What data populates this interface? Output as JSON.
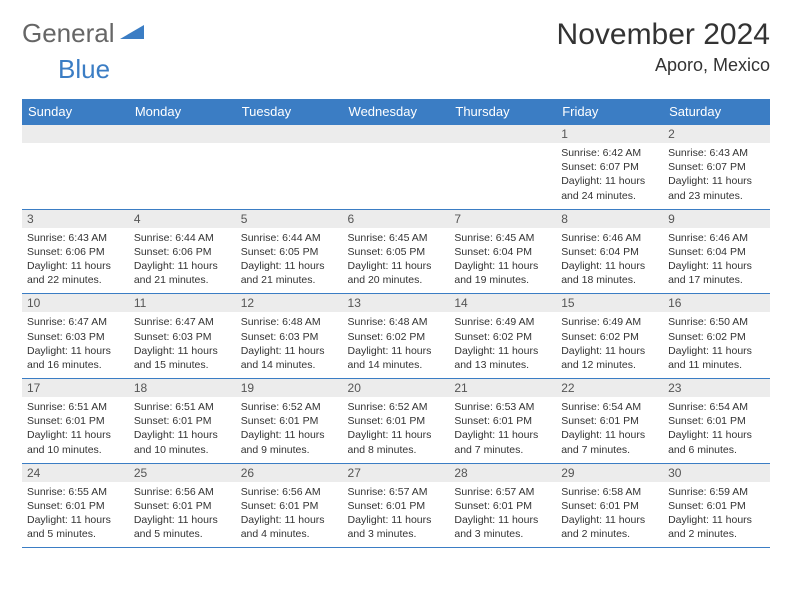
{
  "brand": {
    "part1": "General",
    "part2": "Blue"
  },
  "title": "November 2024",
  "location": "Aporo, Mexico",
  "colors": {
    "header_bg": "#3b7dc4",
    "header_fg": "#ffffff",
    "daynum_bg": "#ececec",
    "text": "#333333",
    "logo_gray": "#666666",
    "logo_blue": "#3b7dc4"
  },
  "dow": [
    "Sunday",
    "Monday",
    "Tuesday",
    "Wednesday",
    "Thursday",
    "Friday",
    "Saturday"
  ],
  "weeks": [
    [
      null,
      null,
      null,
      null,
      null,
      {
        "n": "1",
        "sr": "Sunrise: 6:42 AM",
        "ss": "Sunset: 6:07 PM",
        "dl": "Daylight: 11 hours and 24 minutes."
      },
      {
        "n": "2",
        "sr": "Sunrise: 6:43 AM",
        "ss": "Sunset: 6:07 PM",
        "dl": "Daylight: 11 hours and 23 minutes."
      }
    ],
    [
      {
        "n": "3",
        "sr": "Sunrise: 6:43 AM",
        "ss": "Sunset: 6:06 PM",
        "dl": "Daylight: 11 hours and 22 minutes."
      },
      {
        "n": "4",
        "sr": "Sunrise: 6:44 AM",
        "ss": "Sunset: 6:06 PM",
        "dl": "Daylight: 11 hours and 21 minutes."
      },
      {
        "n": "5",
        "sr": "Sunrise: 6:44 AM",
        "ss": "Sunset: 6:05 PM",
        "dl": "Daylight: 11 hours and 21 minutes."
      },
      {
        "n": "6",
        "sr": "Sunrise: 6:45 AM",
        "ss": "Sunset: 6:05 PM",
        "dl": "Daylight: 11 hours and 20 minutes."
      },
      {
        "n": "7",
        "sr": "Sunrise: 6:45 AM",
        "ss": "Sunset: 6:04 PM",
        "dl": "Daylight: 11 hours and 19 minutes."
      },
      {
        "n": "8",
        "sr": "Sunrise: 6:46 AM",
        "ss": "Sunset: 6:04 PM",
        "dl": "Daylight: 11 hours and 18 minutes."
      },
      {
        "n": "9",
        "sr": "Sunrise: 6:46 AM",
        "ss": "Sunset: 6:04 PM",
        "dl": "Daylight: 11 hours and 17 minutes."
      }
    ],
    [
      {
        "n": "10",
        "sr": "Sunrise: 6:47 AM",
        "ss": "Sunset: 6:03 PM",
        "dl": "Daylight: 11 hours and 16 minutes."
      },
      {
        "n": "11",
        "sr": "Sunrise: 6:47 AM",
        "ss": "Sunset: 6:03 PM",
        "dl": "Daylight: 11 hours and 15 minutes."
      },
      {
        "n": "12",
        "sr": "Sunrise: 6:48 AM",
        "ss": "Sunset: 6:03 PM",
        "dl": "Daylight: 11 hours and 14 minutes."
      },
      {
        "n": "13",
        "sr": "Sunrise: 6:48 AM",
        "ss": "Sunset: 6:02 PM",
        "dl": "Daylight: 11 hours and 14 minutes."
      },
      {
        "n": "14",
        "sr": "Sunrise: 6:49 AM",
        "ss": "Sunset: 6:02 PM",
        "dl": "Daylight: 11 hours and 13 minutes."
      },
      {
        "n": "15",
        "sr": "Sunrise: 6:49 AM",
        "ss": "Sunset: 6:02 PM",
        "dl": "Daylight: 11 hours and 12 minutes."
      },
      {
        "n": "16",
        "sr": "Sunrise: 6:50 AM",
        "ss": "Sunset: 6:02 PM",
        "dl": "Daylight: 11 hours and 11 minutes."
      }
    ],
    [
      {
        "n": "17",
        "sr": "Sunrise: 6:51 AM",
        "ss": "Sunset: 6:01 PM",
        "dl": "Daylight: 11 hours and 10 minutes."
      },
      {
        "n": "18",
        "sr": "Sunrise: 6:51 AM",
        "ss": "Sunset: 6:01 PM",
        "dl": "Daylight: 11 hours and 10 minutes."
      },
      {
        "n": "19",
        "sr": "Sunrise: 6:52 AM",
        "ss": "Sunset: 6:01 PM",
        "dl": "Daylight: 11 hours and 9 minutes."
      },
      {
        "n": "20",
        "sr": "Sunrise: 6:52 AM",
        "ss": "Sunset: 6:01 PM",
        "dl": "Daylight: 11 hours and 8 minutes."
      },
      {
        "n": "21",
        "sr": "Sunrise: 6:53 AM",
        "ss": "Sunset: 6:01 PM",
        "dl": "Daylight: 11 hours and 7 minutes."
      },
      {
        "n": "22",
        "sr": "Sunrise: 6:54 AM",
        "ss": "Sunset: 6:01 PM",
        "dl": "Daylight: 11 hours and 7 minutes."
      },
      {
        "n": "23",
        "sr": "Sunrise: 6:54 AM",
        "ss": "Sunset: 6:01 PM",
        "dl": "Daylight: 11 hours and 6 minutes."
      }
    ],
    [
      {
        "n": "24",
        "sr": "Sunrise: 6:55 AM",
        "ss": "Sunset: 6:01 PM",
        "dl": "Daylight: 11 hours and 5 minutes."
      },
      {
        "n": "25",
        "sr": "Sunrise: 6:56 AM",
        "ss": "Sunset: 6:01 PM",
        "dl": "Daylight: 11 hours and 5 minutes."
      },
      {
        "n": "26",
        "sr": "Sunrise: 6:56 AM",
        "ss": "Sunset: 6:01 PM",
        "dl": "Daylight: 11 hours and 4 minutes."
      },
      {
        "n": "27",
        "sr": "Sunrise: 6:57 AM",
        "ss": "Sunset: 6:01 PM",
        "dl": "Daylight: 11 hours and 3 minutes."
      },
      {
        "n": "28",
        "sr": "Sunrise: 6:57 AM",
        "ss": "Sunset: 6:01 PM",
        "dl": "Daylight: 11 hours and 3 minutes."
      },
      {
        "n": "29",
        "sr": "Sunrise: 6:58 AM",
        "ss": "Sunset: 6:01 PM",
        "dl": "Daylight: 11 hours and 2 minutes."
      },
      {
        "n": "30",
        "sr": "Sunrise: 6:59 AM",
        "ss": "Sunset: 6:01 PM",
        "dl": "Daylight: 11 hours and 2 minutes."
      }
    ]
  ]
}
